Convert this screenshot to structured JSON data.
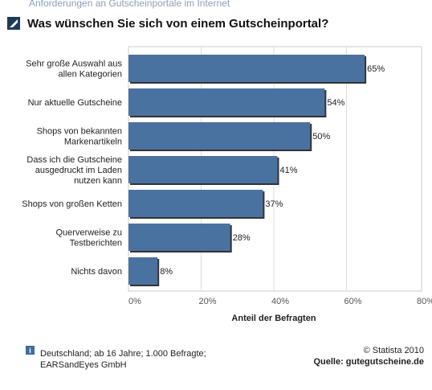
{
  "chart_data": {
    "type": "bar",
    "orientation": "horizontal",
    "supertitle": "Anforderungen an Gutscheinportale im Internet",
    "title": "Was wünschen Sie sich von einem Gutscheinportal?",
    "categories": [
      "Sehr große Auswahl aus\nallen Kategorien",
      "Nur aktuelle Gutscheine",
      "Shops von bekannten\nMarkenartikeln",
      "Dass ich die Gutscheine\nausgedruckt im Laden\nnutzen kann",
      "Shops von großen Ketten",
      "Querverweise zu\nTestberichten",
      "Nichts davon"
    ],
    "values": [
      65,
      54,
      50,
      41,
      37,
      28,
      8
    ],
    "value_labels": [
      "65%",
      "54%",
      "50%",
      "41%",
      "37%",
      "28%",
      "8%"
    ],
    "color": "#4a72a0",
    "xlim": [
      0,
      80
    ],
    "xticks": [
      {
        "value": 0,
        "label": "0%"
      },
      {
        "value": 20,
        "label": "20%"
      },
      {
        "value": 40,
        "label": "40%"
      },
      {
        "value": 60,
        "label": "60%"
      },
      {
        "value": 80,
        "label": "80%"
      }
    ],
    "grid": true,
    "xlabel": "Anteil der Befragten",
    "footnote": "Deutschland; ab 16 Jahre; 1.000 Befragte;\nEARSandEyes GmbH",
    "copyright": "© Statista 2010",
    "source": "Quelle: gutegutscheine.de"
  }
}
